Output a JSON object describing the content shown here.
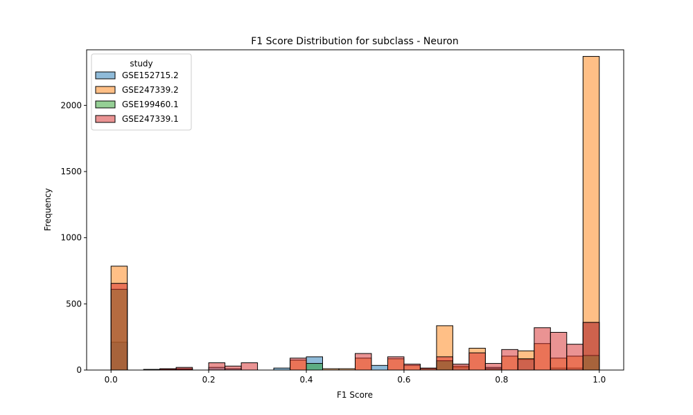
{
  "chart_data": {
    "type": "bar",
    "title": "F1 Score Distribution for subclass - Neuron",
    "xlabel": "F1 Score",
    "ylabel": "Frequency",
    "xlim": [
      -0.05,
      1.05
    ],
    "ylim": [
      0,
      2420
    ],
    "x_ticks": [
      0.0,
      0.2,
      0.4,
      0.6,
      0.8,
      1.0
    ],
    "x_tick_labels": [
      "0.0",
      "0.2",
      "0.4",
      "0.6",
      "0.8",
      "1.0"
    ],
    "y_ticks": [
      0,
      500,
      1000,
      1500,
      2000
    ],
    "y_tick_labels": [
      "0",
      "500",
      "1000",
      "1500",
      "2000"
    ],
    "bin_edges": [
      0.0,
      0.0333,
      0.0667,
      0.1,
      0.1333,
      0.1667,
      0.2,
      0.2333,
      0.2667,
      0.3,
      0.3333,
      0.3667,
      0.4,
      0.4333,
      0.4667,
      0.5,
      0.5333,
      0.5667,
      0.6,
      0.6333,
      0.6667,
      0.7,
      0.7333,
      0.7667,
      0.8,
      0.8333,
      0.8667,
      0.9,
      0.9333,
      0.9667,
      1.0
    ],
    "legend": {
      "title": "study",
      "placement": "upper-left"
    },
    "grid": false,
    "series": [
      {
        "name": "GSE152715.2",
        "color": "#1f77b4",
        "values": [
          210,
          0,
          0,
          0,
          10,
          0,
          20,
          10,
          0,
          0,
          15,
          0,
          100,
          0,
          0,
          0,
          35,
          0,
          0,
          0,
          70,
          20,
          0,
          20,
          0,
          80,
          0,
          15,
          15,
          360
        ]
      },
      {
        "name": "GSE247339.2",
        "color": "#ff7f0e",
        "values": [
          785,
          0,
          5,
          5,
          5,
          0,
          0,
          0,
          0,
          0,
          0,
          75,
          0,
          10,
          10,
          90,
          0,
          85,
          35,
          10,
          335,
          30,
          165,
          10,
          105,
          145,
          200,
          90,
          105,
          2370
        ]
      },
      {
        "name": "GSE199460.1",
        "color": "#2ca02c",
        "values": [
          610,
          0,
          0,
          0,
          0,
          0,
          0,
          0,
          0,
          0,
          0,
          0,
          50,
          0,
          0,
          0,
          0,
          0,
          0,
          0,
          70,
          0,
          0,
          0,
          0,
          0,
          0,
          0,
          0,
          110
        ]
      },
      {
        "name": "GSE247339.1",
        "color": "#d62728",
        "values": [
          655,
          0,
          0,
          10,
          20,
          0,
          55,
          30,
          55,
          0,
          0,
          90,
          0,
          0,
          0,
          125,
          0,
          100,
          45,
          15,
          100,
          45,
          130,
          50,
          155,
          85,
          320,
          285,
          195,
          360
        ]
      }
    ]
  }
}
